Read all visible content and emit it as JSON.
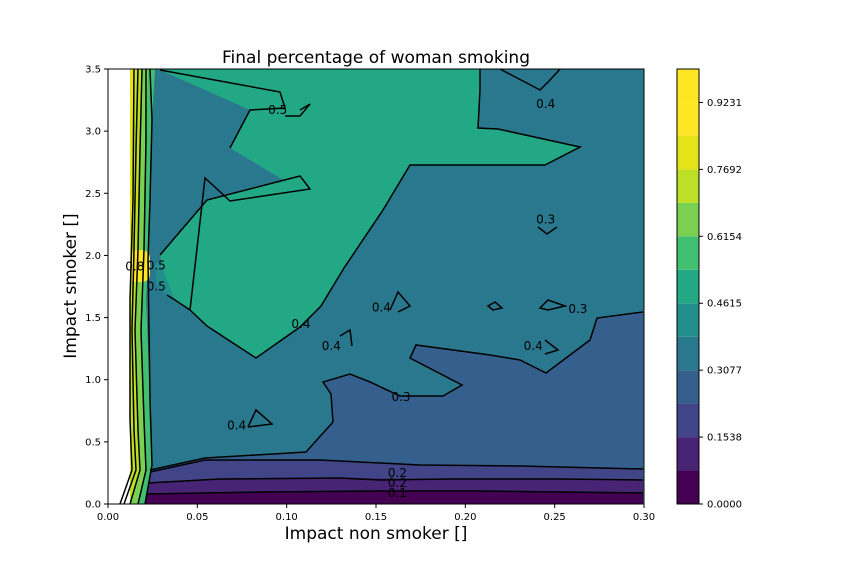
{
  "chart_data": {
    "type": "contour",
    "title": "Final percentage of woman smoking",
    "xlabel": "Impact non smoker []",
    "ylabel": "Impact smoker []",
    "xlim": [
      0.0,
      0.3
    ],
    "ylim": [
      0.0,
      3.5
    ],
    "x_ticks": [
      "0.00",
      "0.05",
      "0.10",
      "0.15",
      "0.20",
      "0.25",
      "0.30"
    ],
    "y_ticks": [
      "0.0",
      "0.5",
      "1.0",
      "1.5",
      "2.0",
      "2.5",
      "3.0",
      "3.5"
    ],
    "colormap": "viridis",
    "colorbar": {
      "levels": [
        0.0,
        0.0769,
        0.1538,
        0.2308,
        0.3077,
        0.3846,
        0.4615,
        0.5385,
        0.6154,
        0.6923,
        0.7692,
        0.8462,
        0.9231,
        1.0
      ],
      "tick_labels": [
        "0.0000",
        "0.1538",
        "0.3077",
        "0.4615",
        "0.6154",
        "0.7692",
        "0.9231"
      ],
      "colors": [
        "#440154",
        "#482475",
        "#414487",
        "#355f8d",
        "#2a788e",
        "#21908d",
        "#22a884",
        "#42be71",
        "#7ad151",
        "#bddf26",
        "#e2e418",
        "#fde725",
        "#fde725"
      ]
    },
    "contour_labels": [
      {
        "text": "0.5",
        "x": 0.095,
        "y": 3.17
      },
      {
        "text": "0.4",
        "x": 0.245,
        "y": 3.22
      },
      {
        "text": "0.3",
        "x": 0.245,
        "y": 2.29
      },
      {
        "text": "0.4",
        "x": 0.108,
        "y": 1.45
      },
      {
        "text": "0.4",
        "x": 0.153,
        "y": 1.58
      },
      {
        "text": "0.3",
        "x": 0.263,
        "y": 1.57
      },
      {
        "text": "0.4",
        "x": 0.125,
        "y": 1.27
      },
      {
        "text": "0.4",
        "x": 0.238,
        "y": 1.27
      },
      {
        "text": "0.3",
        "x": 0.164,
        "y": 0.86
      },
      {
        "text": "0.4",
        "x": 0.072,
        "y": 0.63
      },
      {
        "text": "0.2",
        "x": 0.162,
        "y": 0.25
      },
      {
        "text": "0.2",
        "x": 0.162,
        "y": 0.17
      },
      {
        "text": "0.1",
        "x": 0.162,
        "y": 0.09
      },
      {
        "text": "0.5",
        "x": 0.027,
        "y": 1.92
      },
      {
        "text": "0.5",
        "x": 0.027,
        "y": 1.75
      },
      {
        "text": "0.8",
        "x": 0.015,
        "y": 1.91
      }
    ],
    "colors": {
      "c0": "#440154",
      "c1": "#482475",
      "c2": "#414487",
      "c3": "#355f8d",
      "c4": "#2a788e",
      "c5": "#21908d",
      "c6": "#22a884",
      "c7": "#42be71",
      "c8": "#7ad151",
      "c9": "#bddf26",
      "c10": "#e2e418",
      "c11": "#fde725"
    }
  }
}
